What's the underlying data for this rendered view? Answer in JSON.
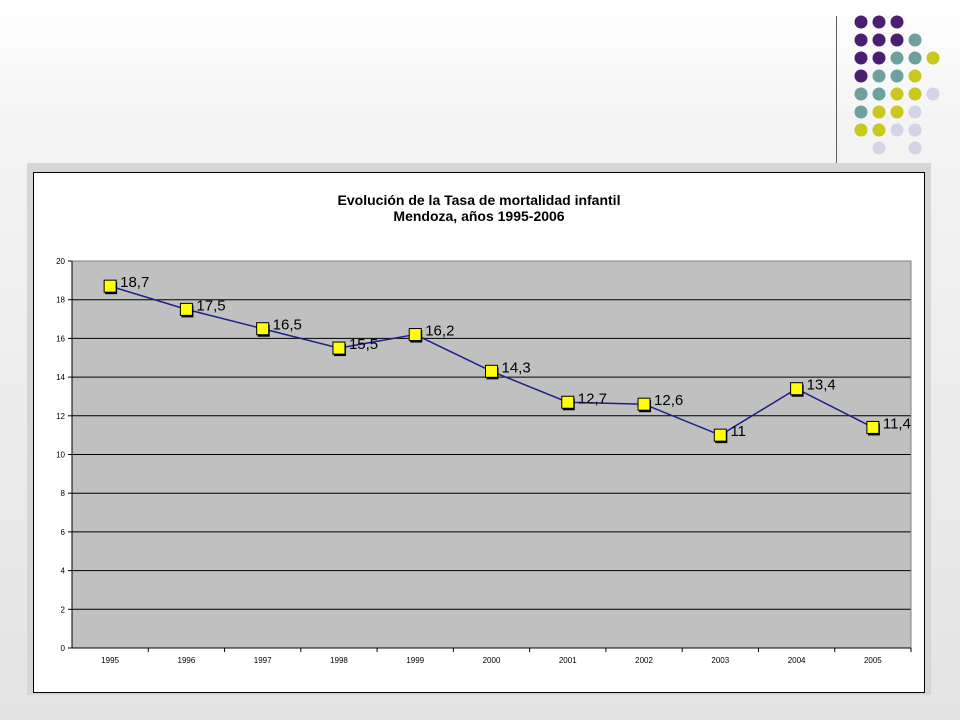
{
  "slide": {
    "decor_colors": [
      "#4b1f6f",
      "#6fa0a0",
      "#c8c81e",
      "#d4d4e8"
    ]
  },
  "chart_data": {
    "type": "line",
    "title": "Evolución de la Tasa de mortalidad infantil",
    "subtitle": "Mendoza, años 1995-2006",
    "xlabel": "",
    "ylabel": "",
    "categories": [
      "1995",
      "1996",
      "1997",
      "1998",
      "1999",
      "2000",
      "2001",
      "2002",
      "2003",
      "2004",
      "2005"
    ],
    "series": [
      {
        "values": [
          18.7,
          17.5,
          16.5,
          15.5,
          16.2,
          14.3,
          12.7,
          12.6,
          11,
          13.4,
          11.4
        ],
        "labels": [
          "18,7",
          "17,5",
          "16,5",
          "15,5",
          "16,2",
          "14,3",
          "12,7",
          "12,6",
          "11",
          "13,4",
          "11,4"
        ],
        "line_color": "#1f1f8f",
        "marker_color": "#ffff00"
      }
    ],
    "yticks": [
      "0",
      "2",
      "4",
      "6",
      "8",
      "10",
      "12",
      "14",
      "16",
      "18",
      "20"
    ],
    "ylim": [
      0,
      20
    ],
    "grid": true,
    "legend": "none",
    "plot_background": "#c0c0c0"
  }
}
